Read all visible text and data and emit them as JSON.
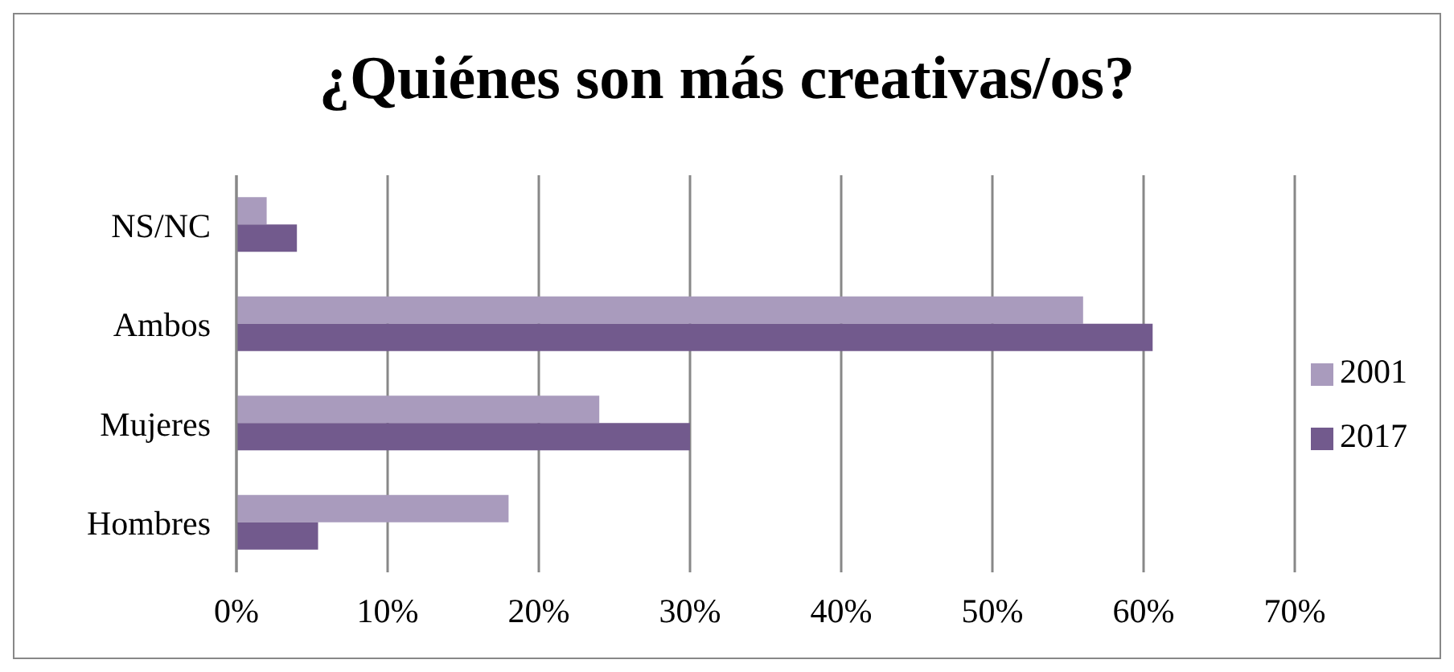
{
  "chart_data": {
    "type": "bar",
    "orientation": "horizontal",
    "title": "¿Quiénes son más creativas/os?",
    "categories": [
      "NS/NC",
      "Ambos",
      "Mujeres",
      "Hombres"
    ],
    "series": [
      {
        "name": "2001",
        "color": "#a99bbd",
        "values": [
          2,
          56,
          24,
          18
        ]
      },
      {
        "name": "2017",
        "color": "#725a8d",
        "values": [
          4,
          60.6,
          30,
          5.4
        ]
      }
    ],
    "xlim": [
      0,
      70
    ],
    "xticks": [
      {
        "value": 0,
        "label": "0%"
      },
      {
        "value": 10,
        "label": "10%"
      },
      {
        "value": 20,
        "label": "20%"
      },
      {
        "value": 30,
        "label": "30%"
      },
      {
        "value": 40,
        "label": "40%"
      },
      {
        "value": 50,
        "label": "50%"
      },
      {
        "value": 60,
        "label": "60%"
      },
      {
        "value": 70,
        "label": "70%"
      }
    ],
    "grid": "x",
    "legend": "right"
  }
}
